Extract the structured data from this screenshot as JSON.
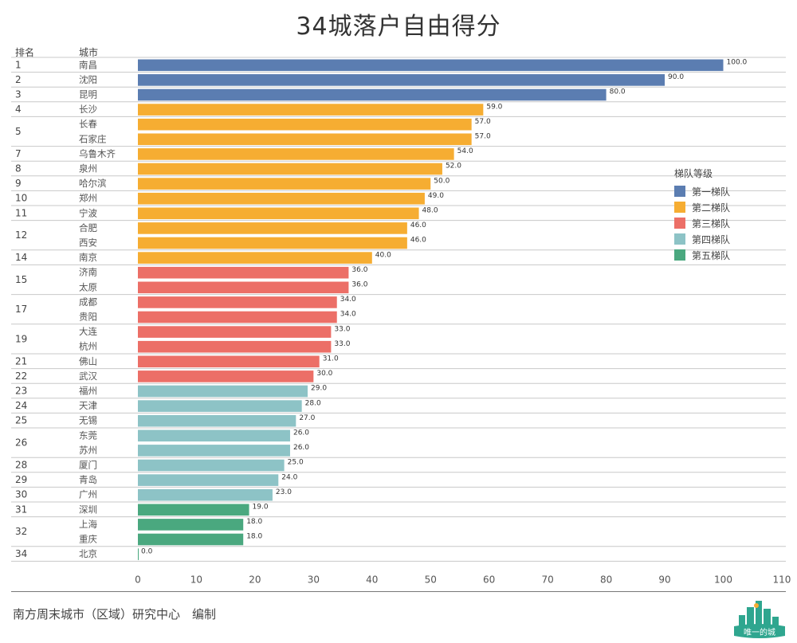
{
  "page": {
    "title": "34城落户自由得分",
    "rank_header": "排名",
    "city_header": "城市",
    "footer": "南方周末城市（区域）研究中心　编制",
    "logo_text": "唯一的城"
  },
  "chart_data": {
    "type": "bar",
    "orientation": "horizontal",
    "title": "34城落户自由得分",
    "xlim": [
      0,
      110
    ],
    "xticks": [
      0,
      10,
      20,
      30,
      40,
      50,
      60,
      70,
      80,
      90,
      100,
      110
    ],
    "grid": false,
    "legend_title": "梯队等级",
    "legend_position": "right",
    "tiers": [
      {
        "name": "第一梯队",
        "color": "#5b7db1"
      },
      {
        "name": "第二梯队",
        "color": "#f6ad32"
      },
      {
        "name": "第三梯队",
        "color": "#ec6f67"
      },
      {
        "name": "第四梯队",
        "color": "#8dc3c6"
      },
      {
        "name": "第五梯队",
        "color": "#4aa87f"
      }
    ],
    "groups": [
      {
        "rank": "1",
        "cities": [
          {
            "city": "南昌",
            "value": 100.0,
            "label": "100.0",
            "tier": 0
          }
        ]
      },
      {
        "rank": "2",
        "cities": [
          {
            "city": "沈阳",
            "value": 90.0,
            "label": "90.0",
            "tier": 0
          }
        ]
      },
      {
        "rank": "3",
        "cities": [
          {
            "city": "昆明",
            "value": 80.0,
            "label": "80.0",
            "tier": 0
          }
        ]
      },
      {
        "rank": "4",
        "cities": [
          {
            "city": "长沙",
            "value": 59.0,
            "label": "59.0",
            "tier": 1
          }
        ]
      },
      {
        "rank": "5",
        "cities": [
          {
            "city": "长春",
            "value": 57.0,
            "label": "57.0",
            "tier": 1
          },
          {
            "city": "石家庄",
            "value": 57.0,
            "label": "57.0",
            "tier": 1
          }
        ]
      },
      {
        "rank": "7",
        "cities": [
          {
            "city": "乌鲁木齐",
            "value": 54.0,
            "label": "54.0",
            "tier": 1
          }
        ]
      },
      {
        "rank": "8",
        "cities": [
          {
            "city": "泉州",
            "value": 52.0,
            "label": "52.0",
            "tier": 1
          }
        ]
      },
      {
        "rank": "9",
        "cities": [
          {
            "city": "哈尔滨",
            "value": 50.0,
            "label": "50.0",
            "tier": 1
          }
        ]
      },
      {
        "rank": "10",
        "cities": [
          {
            "city": "郑州",
            "value": 49.0,
            "label": "49.0",
            "tier": 1
          }
        ]
      },
      {
        "rank": "11",
        "cities": [
          {
            "city": "宁波",
            "value": 48.0,
            "label": "48.0",
            "tier": 1
          }
        ]
      },
      {
        "rank": "12",
        "cities": [
          {
            "city": "合肥",
            "value": 46.0,
            "label": "46.0",
            "tier": 1
          },
          {
            "city": "西安",
            "value": 46.0,
            "label": "46.0",
            "tier": 1
          }
        ]
      },
      {
        "rank": "14",
        "cities": [
          {
            "city": "南京",
            "value": 40.0,
            "label": "40.0",
            "tier": 1
          }
        ]
      },
      {
        "rank": "15",
        "cities": [
          {
            "city": "济南",
            "value": 36.0,
            "label": "36.0",
            "tier": 2
          },
          {
            "city": "太原",
            "value": 36.0,
            "label": "36.0",
            "tier": 2
          }
        ]
      },
      {
        "rank": "17",
        "cities": [
          {
            "city": "成都",
            "value": 34.0,
            "label": "34.0",
            "tier": 2
          },
          {
            "city": "贵阳",
            "value": 34.0,
            "label": "34.0",
            "tier": 2
          }
        ]
      },
      {
        "rank": "19",
        "cities": [
          {
            "city": "大连",
            "value": 33.0,
            "label": "33.0",
            "tier": 2
          },
          {
            "city": "杭州",
            "value": 33.0,
            "label": "33.0",
            "tier": 2
          }
        ]
      },
      {
        "rank": "21",
        "cities": [
          {
            "city": "佛山",
            "value": 31.0,
            "label": "31.0",
            "tier": 2
          }
        ]
      },
      {
        "rank": "22",
        "cities": [
          {
            "city": "武汉",
            "value": 30.0,
            "label": "30.0",
            "tier": 2
          }
        ]
      },
      {
        "rank": "23",
        "cities": [
          {
            "city": "福州",
            "value": 29.0,
            "label": "29.0",
            "tier": 3
          }
        ]
      },
      {
        "rank": "24",
        "cities": [
          {
            "city": "天津",
            "value": 28.0,
            "label": "28.0",
            "tier": 3
          }
        ]
      },
      {
        "rank": "25",
        "cities": [
          {
            "city": "无锡",
            "value": 27.0,
            "label": "27.0",
            "tier": 3
          }
        ]
      },
      {
        "rank": "26",
        "cities": [
          {
            "city": "东莞",
            "value": 26.0,
            "label": "26.0",
            "tier": 3
          },
          {
            "city": "苏州",
            "value": 26.0,
            "label": "26.0",
            "tier": 3
          }
        ]
      },
      {
        "rank": "28",
        "cities": [
          {
            "city": "厦门",
            "value": 25.0,
            "label": "25.0",
            "tier": 3
          }
        ]
      },
      {
        "rank": "29",
        "cities": [
          {
            "city": "青岛",
            "value": 24.0,
            "label": "24.0",
            "tier": 3
          }
        ]
      },
      {
        "rank": "30",
        "cities": [
          {
            "city": "广州",
            "value": 23.0,
            "label": "23.0",
            "tier": 3
          }
        ]
      },
      {
        "rank": "31",
        "cities": [
          {
            "city": "深圳",
            "value": 19.0,
            "label": "19.0",
            "tier": 4
          }
        ]
      },
      {
        "rank": "32",
        "cities": [
          {
            "city": "上海",
            "value": 18.0,
            "label": "18.0",
            "tier": 4
          },
          {
            "city": "重庆",
            "value": 18.0,
            "label": "18.0",
            "tier": 4
          }
        ]
      },
      {
        "rank": "34",
        "cities": [
          {
            "city": "北京",
            "value": 0.0,
            "label": "0.0",
            "tier": 4
          }
        ]
      }
    ]
  }
}
